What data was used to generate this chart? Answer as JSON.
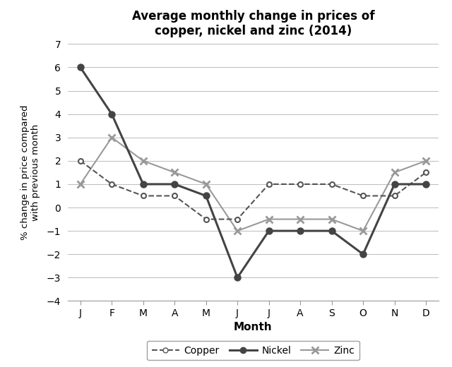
{
  "title": "Average monthly change in prices of\ncopper, nickel and zinc (2014)",
  "xlabel": "Month",
  "ylabel": "% change in price compared\nwith previous month",
  "months": [
    "J",
    "F",
    "M",
    "A",
    "M",
    "J",
    "J",
    "A",
    "S",
    "O",
    "N",
    "D"
  ],
  "copper": [
    2,
    1,
    0.5,
    0.5,
    -0.5,
    -0.5,
    1,
    1,
    1,
    0.5,
    0.5,
    1.5
  ],
  "nickel": [
    6,
    4,
    1,
    1,
    0.5,
    -3,
    -1,
    -1,
    -1,
    -2,
    1,
    1
  ],
  "zinc": [
    1,
    3,
    2,
    1.5,
    1,
    -1,
    -0.5,
    -0.5,
    -0.5,
    -1,
    1.5,
    2
  ],
  "ylim": [
    -4,
    7
  ],
  "yticks": [
    -4,
    -3,
    -2,
    -1,
    0,
    1,
    2,
    3,
    4,
    5,
    6,
    7
  ],
  "copper_color": "#555555",
  "nickel_color": "#444444",
  "zinc_color": "#999999",
  "bg_color": "#ffffff",
  "grid_color": "#bbbbbb",
  "legend_labels": [
    "Copper",
    "Nickel",
    "Zinc"
  ]
}
